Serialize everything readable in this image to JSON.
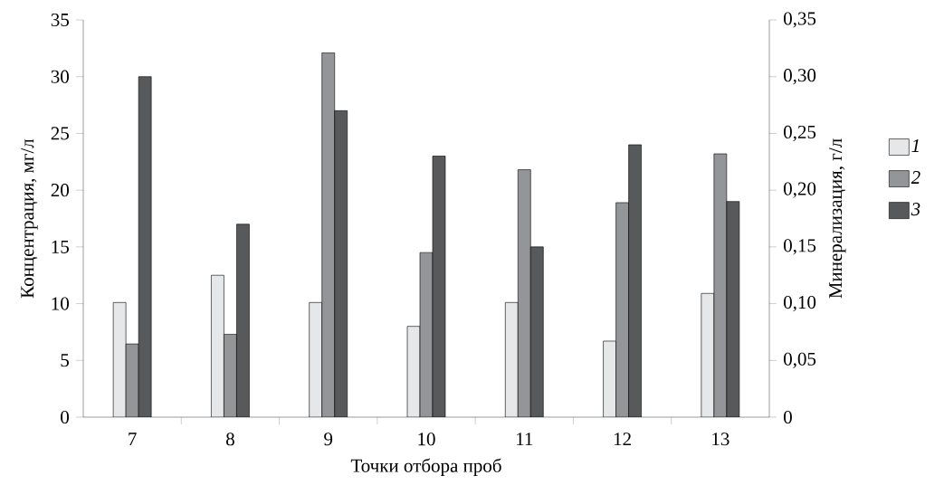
{
  "chart_data": {
    "type": "bar",
    "xlabel": "Точки отбора проб",
    "ylabel": "Концентрация, мг/л",
    "y2label": "Минерализация, г/л",
    "categories": [
      "7",
      "8",
      "9",
      "10",
      "11",
      "12",
      "13"
    ],
    "series": [
      {
        "name": "1",
        "color": "#e6e7e9",
        "values": [
          10.1,
          12.5,
          10.1,
          8.0,
          10.1,
          6.7,
          10.9
        ]
      },
      {
        "name": "2",
        "color": "#939598",
        "values": [
          6.45,
          7.3,
          32.1,
          14.5,
          21.8,
          18.9,
          23.2
        ]
      },
      {
        "name": "3",
        "color": "#58595b",
        "values": [
          30.0,
          17.0,
          27.0,
          23.0,
          15.0,
          24.0,
          19.0
        ]
      }
    ],
    "ylim": [
      0,
      35
    ],
    "yticks": [
      0,
      5,
      10,
      15,
      20,
      25,
      30,
      35
    ],
    "y2lim": [
      0,
      0.35
    ],
    "y2ticks": [
      {
        "value": 0,
        "label": "0"
      },
      {
        "value": 0.05,
        "label": "0,05"
      },
      {
        "value": 0.1,
        "label": "0,10"
      },
      {
        "value": 0.15,
        "label": "0,15"
      },
      {
        "value": 0.2,
        "label": "0,20"
      },
      {
        "value": 0.25,
        "label": "0,25"
      },
      {
        "value": 0.3,
        "label": "0,30"
      },
      {
        "value": 0.35,
        "label": "0,35"
      }
    ],
    "legend": "right",
    "grid": false
  }
}
